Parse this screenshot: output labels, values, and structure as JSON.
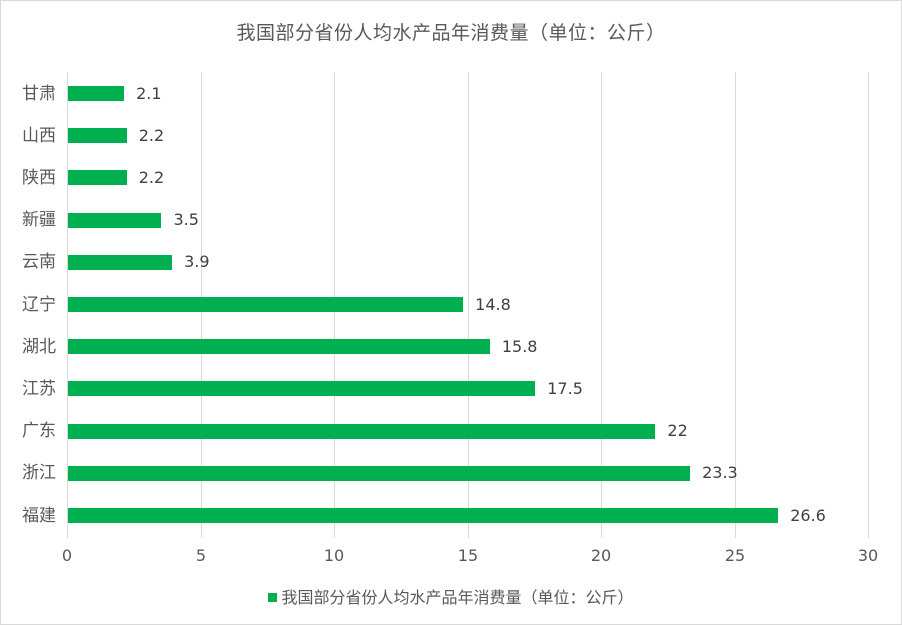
{
  "chart_data": {
    "type": "bar",
    "orientation": "horizontal",
    "title": "我国部分省份人均水产品年消费量（单位：公斤）",
    "categories": [
      "甘肃",
      "山西",
      "陕西",
      "新疆",
      "云南",
      "辽宁",
      "湖北",
      "江苏",
      "广东",
      "浙江",
      "福建"
    ],
    "values": [
      2.1,
      2.2,
      2.2,
      3.5,
      3.9,
      14.8,
      15.8,
      17.5,
      22,
      23.3,
      26.6
    ],
    "value_labels": [
      "2.1",
      "2.2",
      "2.2",
      "3.5",
      "3.9",
      "14.8",
      "15.8",
      "17.5",
      "22",
      "23.3",
      "26.6"
    ],
    "series": [
      {
        "name": "我国部分省份人均水产品年消费量（单位：公斤）",
        "values": [
          2.1,
          2.2,
          2.2,
          3.5,
          3.9,
          14.8,
          15.8,
          17.5,
          22,
          23.3,
          26.6
        ],
        "color": "#00b050"
      }
    ],
    "xlabel": "",
    "ylabel": "",
    "xlim": [
      0,
      30
    ],
    "x_ticks": [
      "0",
      "5",
      "10",
      "15",
      "20",
      "25",
      "30"
    ],
    "grid": "vertical",
    "legend_position": "bottom"
  },
  "colors": {
    "bar": "#00b050",
    "grid": "#d9d9d9",
    "text": "#595959"
  },
  "legend": {
    "label": "我国部分省份人均水产品年消费量（单位：公斤）"
  }
}
